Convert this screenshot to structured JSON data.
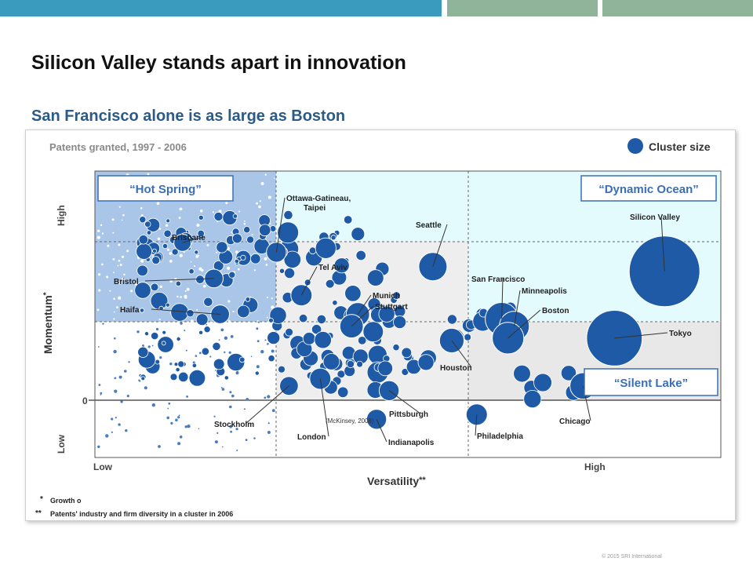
{
  "slide": {
    "title": "Silicon Valley stands apart in innovation",
    "subtitle": "San Francisco alone is as large as Boston",
    "footer": "© 2015 SRI International",
    "top_bar_colors": [
      "#3a9bbf",
      "#8fb49a",
      "#8fb49a"
    ]
  },
  "chart_data": {
    "type": "scatter",
    "title": "Patents granted, 1997 - 2006",
    "legend": {
      "label": "Cluster size",
      "placement": "top-right",
      "color": "#1f5aa6"
    },
    "xlabel": "Versatility",
    "xlabel_marker": "**",
    "ylabel": "Momentum",
    "ylabel_marker": "*",
    "x_ticks": {
      "low": "Low",
      "high": "High"
    },
    "y_ticks": {
      "low": "Low",
      "high": "High",
      "zero": "0"
    },
    "xlim": [
      0,
      100
    ],
    "ylim": [
      -20,
      100
    ],
    "quadrants": [
      {
        "name": "hot-spring",
        "label": "“Hot Spring”",
        "color": "#a9c6e8"
      },
      {
        "name": "dynamic-ocean",
        "label": "“Dynamic Ocean”",
        "color": "#e3fbfd"
      },
      {
        "name": "silent-lake",
        "label": "“Silent Lake”",
        "color": "#e8e8e8"
      }
    ],
    "citation": "(McKinsey, 2008)",
    "footnotes": [
      {
        "marker": "*",
        "text": "Growth o"
      },
      {
        "marker": "**",
        "text": "Patents' industry and firm diversity in a cluster in 2006"
      }
    ],
    "labeled_clusters": [
      {
        "name": "Silicon Valley",
        "x": 91,
        "y": 58,
        "size": 100
      },
      {
        "name": "Tokyo",
        "x": 83,
        "y": 30,
        "size": 62
      },
      {
        "name": "San Francisco",
        "x": 65,
        "y": 38,
        "size": 22
      },
      {
        "name": "Minneapolis",
        "x": 67,
        "y": 35,
        "size": 18
      },
      {
        "name": "Boston",
        "x": 66,
        "y": 30,
        "size": 20
      },
      {
        "name": "Seattle",
        "x": 54,
        "y": 60,
        "size": 16
      },
      {
        "name": "Houston",
        "x": 57,
        "y": 29,
        "size": 12
      },
      {
        "name": "Chicago",
        "x": 78,
        "y": 10,
        "size": 14
      },
      {
        "name": "Philadelphia",
        "x": 61,
        "y": -2,
        "size": 9
      },
      {
        "name": "Pittsburgh",
        "x": 47,
        "y": 8,
        "size": 8
      },
      {
        "name": "Indianapolis",
        "x": 45,
        "y": -4,
        "size": 8
      },
      {
        "name": "London",
        "x": 36,
        "y": 13,
        "size": 9
      },
      {
        "name": "Munich",
        "x": 42,
        "y": 40,
        "size": 11
      },
      {
        "name": "Stuttgart",
        "x": 41,
        "y": 35,
        "size": 11
      },
      {
        "name": "Tel Aviv",
        "x": 33,
        "y": 48,
        "size": 9
      },
      {
        "name": "Ottawa-Gatineau, Taipei",
        "x": 29,
        "y": 66,
        "size": 8
      },
      {
        "name": "Brisbane",
        "x": 14,
        "y": 70,
        "size": 6
      },
      {
        "name": "Bristol",
        "x": 19,
        "y": 55,
        "size": 7
      },
      {
        "name": "Haifa",
        "x": 20,
        "y": 40,
        "size": 7
      },
      {
        "name": "Stockholm",
        "x": 31,
        "y": 10,
        "size": 7
      }
    ]
  }
}
